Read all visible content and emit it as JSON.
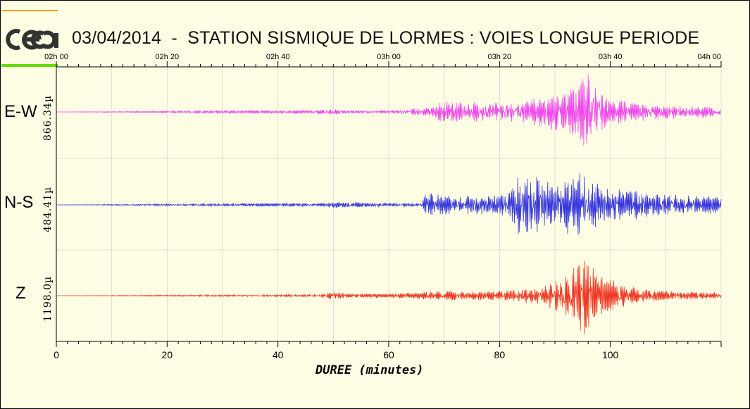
{
  "header": {
    "title": "03/04/2014  -  STATION SISMIQUE DE LORMES : VOIES LONGUE PERIODE",
    "logo_text": "cea"
  },
  "colors": {
    "background": "#fefee4",
    "ew": "#ee44ee",
    "ns": "#3333dd",
    "z": "#ee3322",
    "grid": "#d8d8d0"
  },
  "chart_data": {
    "type": "line",
    "title": "03/04/2014  -  STATION SISMIQUE DE LORMES : VOIES LONGUE PERIODE",
    "xlabel": "DUREE (minutes)",
    "xlim": [
      0,
      120
    ],
    "x_ticks": [
      0,
      20,
      40,
      60,
      80,
      100
    ],
    "top_ticks": [
      "02h 00",
      "02h 20",
      "02h 40",
      "03h 00",
      "03h 20",
      "03h 40",
      "04h 00"
    ],
    "top_tick_minutes": [
      0,
      20,
      40,
      60,
      80,
      100,
      120
    ],
    "grid": true,
    "series": [
      {
        "name": "E-W",
        "scale": "866.34µ",
        "color": "#ee44ee",
        "envelope": {
          "x": [
            0,
            25,
            47,
            50,
            52,
            60,
            67,
            70,
            75,
            80,
            85,
            88,
            90,
            93,
            95,
            96,
            98,
            100,
            105,
            110,
            115,
            120
          ],
          "amp": [
            0.0,
            0.03,
            0.05,
            0.08,
            0.04,
            0.04,
            0.1,
            0.3,
            0.25,
            0.22,
            0.3,
            0.38,
            0.45,
            0.55,
            0.95,
            0.95,
            0.55,
            0.32,
            0.22,
            0.18,
            0.14,
            0.12
          ]
        }
      },
      {
        "name": "N-S",
        "scale": "484.41µ",
        "color": "#3333dd",
        "envelope": {
          "x": [
            0,
            25,
            48,
            50,
            60,
            66,
            67,
            68,
            72,
            76,
            80,
            82,
            84,
            86,
            88,
            90,
            92,
            94,
            95,
            96,
            98,
            100,
            105,
            110,
            115,
            120
          ],
          "amp": [
            0.0,
            0.03,
            0.05,
            0.08,
            0.05,
            0.05,
            0.4,
            0.3,
            0.2,
            0.25,
            0.25,
            0.4,
            0.85,
            0.75,
            0.6,
            0.45,
            0.65,
            0.85,
            0.95,
            0.7,
            0.55,
            0.45,
            0.35,
            0.25,
            0.22,
            0.2
          ]
        }
      },
      {
        "name": "Z",
        "scale": "1198.0µ",
        "color": "#ee3322",
        "envelope": {
          "x": [
            0,
            25,
            47,
            50,
            53,
            60,
            65,
            70,
            75,
            80,
            85,
            88,
            91,
            94,
            95,
            96,
            98,
            100,
            103,
            105,
            110,
            115,
            120
          ],
          "amp": [
            0.0,
            0.02,
            0.03,
            0.1,
            0.05,
            0.05,
            0.08,
            0.12,
            0.1,
            0.12,
            0.18,
            0.25,
            0.45,
            0.75,
            0.95,
            0.85,
            0.55,
            0.4,
            0.25,
            0.18,
            0.12,
            0.1,
            0.08
          ]
        }
      }
    ]
  }
}
